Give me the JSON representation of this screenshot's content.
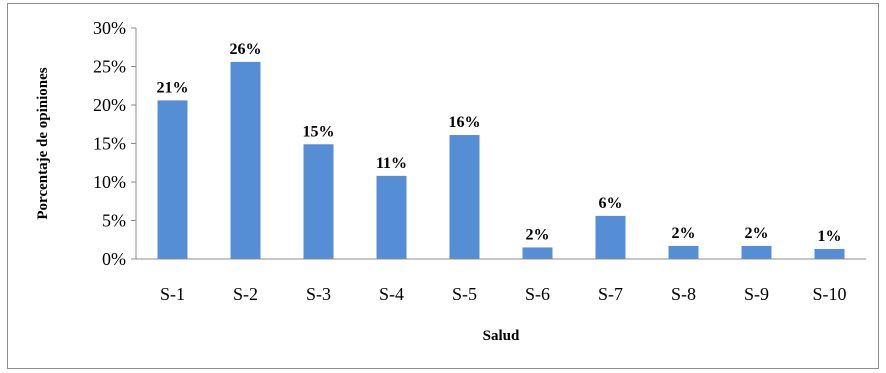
{
  "chart_data": {
    "type": "bar",
    "categories": [
      "S-1",
      "S-2",
      "S-3",
      "S-4",
      "S-5",
      "S-6",
      "S-7",
      "S-8",
      "S-9",
      "S-10"
    ],
    "values": [
      20.6,
      25.6,
      14.9,
      10.8,
      16.1,
      1.5,
      5.6,
      1.7,
      1.7,
      1.3
    ],
    "data_labels": [
      "21%",
      "26%",
      "15%",
      "11%",
      "16%",
      "2%",
      "6%",
      "2%",
      "2%",
      "1%"
    ],
    "ylim": [
      0,
      30
    ],
    "yticks": [
      0,
      5,
      10,
      15,
      20,
      25,
      30
    ],
    "ytick_labels": [
      "0%",
      "5%",
      "10%",
      "15%",
      "20%",
      "25%",
      "30%"
    ],
    "xlabel": "Salud",
    "ylabel": "Porcentaje de opiniones",
    "title": "",
    "grid": false,
    "legend": "none",
    "bar_color": "#558ED5"
  }
}
